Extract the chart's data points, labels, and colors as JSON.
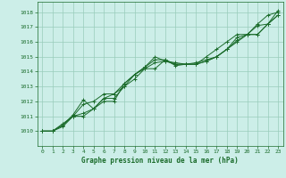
{
  "title": "",
  "xlabel": "Graphe pression niveau de la mer (hPa)",
  "ylabel": "",
  "xlim": [
    -0.5,
    23.5
  ],
  "ylim": [
    1009.0,
    1018.7
  ],
  "yticks": [
    1010,
    1011,
    1012,
    1013,
    1014,
    1015,
    1016,
    1017,
    1018
  ],
  "xticks": [
    0,
    1,
    2,
    3,
    4,
    5,
    6,
    7,
    8,
    9,
    10,
    11,
    12,
    13,
    14,
    15,
    16,
    17,
    18,
    19,
    20,
    21,
    22,
    23
  ],
  "bg_color": "#cceee8",
  "grid_color": "#99ccbb",
  "line_color": "#1a6b2a",
  "series": [
    [
      1010.0,
      1010.0,
      1010.4,
      1011.0,
      1011.0,
      1011.5,
      1012.2,
      1012.2,
      1013.0,
      1013.5,
      1014.2,
      1014.2,
      1014.8,
      1014.5,
      1014.5,
      1014.6,
      1014.8,
      1015.0,
      1015.5,
      1016.0,
      1016.5,
      1016.5,
      1017.2,
      1017.8
    ],
    [
      1010.0,
      1010.0,
      1010.4,
      1011.1,
      1012.1,
      1011.5,
      1012.2,
      1012.5,
      1013.0,
      1013.8,
      1014.3,
      1015.0,
      1014.7,
      1014.6,
      1014.5,
      1014.5,
      1014.7,
      1015.0,
      1015.5,
      1016.1,
      1016.5,
      1016.5,
      1017.2,
      1017.8
    ],
    [
      1010.0,
      1010.0,
      1010.5,
      1011.0,
      1011.8,
      1012.0,
      1012.5,
      1012.5,
      1013.2,
      1013.8,
      1014.2,
      1014.6,
      1014.7,
      1014.5,
      1014.5,
      1014.5,
      1015.0,
      1015.5,
      1016.0,
      1016.5,
      1016.5,
      1017.2,
      1017.8,
      1018.0
    ],
    [
      1010.0,
      1010.0,
      1010.3,
      1011.0,
      1011.2,
      1011.5,
      1012.0,
      1012.0,
      1013.2,
      1013.8,
      1014.3,
      1014.8,
      1014.8,
      1014.4,
      1014.5,
      1014.5,
      1014.7,
      1015.0,
      1015.5,
      1016.3,
      1016.5,
      1017.1,
      1017.2,
      1018.1
    ]
  ]
}
